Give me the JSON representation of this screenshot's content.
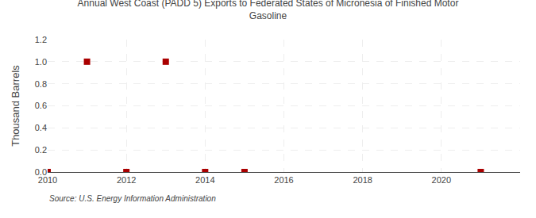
{
  "chart_data": {
    "type": "scatter",
    "title": "Annual West Coast (PADD 5) Exports to Federated States of Micronesia of Finished Motor\nGasoline",
    "ylabel": "Thousand Barrels",
    "source": "Source: U.S. Energy Information Administration",
    "x": [
      2010,
      2011,
      2012,
      2013,
      2014,
      2015,
      2021
    ],
    "values": [
      0.0,
      1.0,
      0.0,
      1.0,
      0.0,
      0.0,
      0.0
    ],
    "color": "#aa0000",
    "marker": "square",
    "xlim": [
      2010,
      2022
    ],
    "xticks": [
      2010,
      2012,
      2014,
      2016,
      2018,
      2020
    ],
    "ylim": [
      0.0,
      1.2
    ],
    "yticks": [
      {
        "value": 0.0,
        "label": "0.0"
      },
      0.2,
      0.4,
      0.6,
      0.8,
      {
        "value": 1.0,
        "label": "1.0"
      },
      1.2
    ],
    "grid": true
  }
}
